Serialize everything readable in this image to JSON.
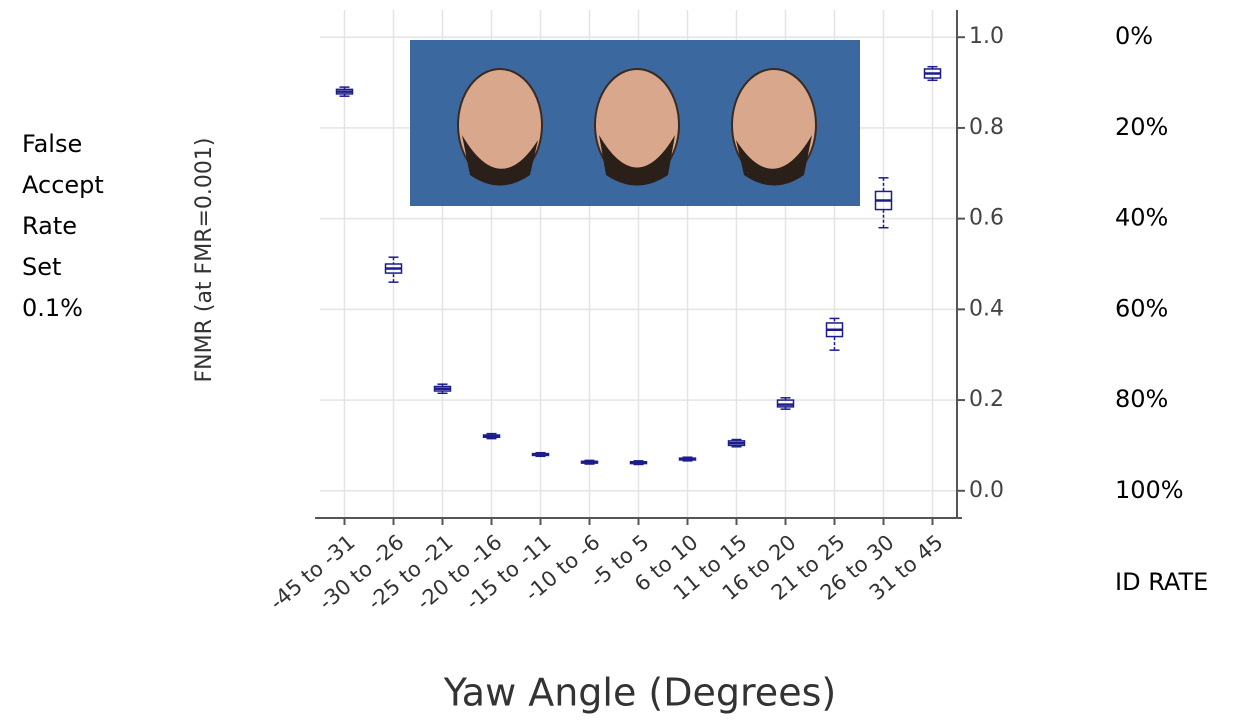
{
  "chart_data": {
    "type": "box",
    "ylabel": "FNMR (at FMR=0.001)",
    "xlabel": "Yaw Angle (Degrees)",
    "side_note": [
      "False",
      "Accept",
      "Rate",
      "Set",
      "0.1%"
    ],
    "y2label": "ID RATE",
    "categories": [
      "-45 to -31",
      "-30 to -26",
      "-25 to -21",
      "-20 to -16",
      "-15 to -11",
      "-10 to -6",
      "-5 to 5",
      "6 to 10",
      "11 to 15",
      "16 to 20",
      "21 to 25",
      "26 to 30",
      "31 to 45"
    ],
    "color": "#1c1c8c",
    "whisker_low": [
      0.87,
      0.46,
      0.215,
      0.115,
      0.076,
      0.059,
      0.058,
      0.066,
      0.097,
      0.18,
      0.31,
      0.58,
      0.905
    ],
    "q1": [
      0.875,
      0.48,
      0.22,
      0.118,
      0.078,
      0.061,
      0.06,
      0.068,
      0.1,
      0.185,
      0.34,
      0.62,
      0.91
    ],
    "median": [
      0.88,
      0.49,
      0.225,
      0.12,
      0.08,
      0.063,
      0.062,
      0.07,
      0.105,
      0.19,
      0.355,
      0.64,
      0.92
    ],
    "q3": [
      0.885,
      0.5,
      0.23,
      0.123,
      0.082,
      0.065,
      0.064,
      0.072,
      0.11,
      0.2,
      0.37,
      0.66,
      0.93
    ],
    "whisker_high": [
      0.89,
      0.515,
      0.235,
      0.126,
      0.084,
      0.067,
      0.066,
      0.074,
      0.113,
      0.205,
      0.38,
      0.69,
      0.935
    ],
    "ylim": [
      -0.06,
      1.06
    ],
    "yticks": [
      {
        "value": 0,
        "label": "0.0"
      },
      0.2,
      0.4,
      0.6,
      0.8,
      {
        "value": 1,
        "label": "1.0"
      }
    ],
    "y2lim": [
      106,
      -6
    ],
    "y2ticks": [
      {
        "value": 0,
        "label": "0%"
      },
      {
        "value": 20,
        "label": "20%"
      },
      {
        "value": 40,
        "label": "40%"
      },
      {
        "value": 60,
        "label": "60%"
      },
      {
        "value": 80,
        "label": "80%"
      },
      {
        "value": 100,
        "label": "100%"
      }
    ],
    "grid": true
  }
}
